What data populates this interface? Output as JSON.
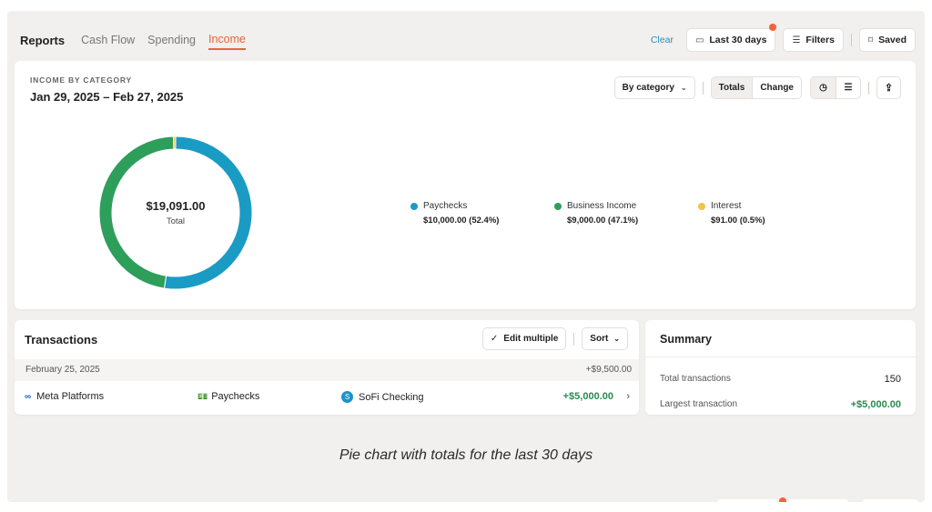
{
  "nav": {
    "title": "Reports",
    "tabs": [
      {
        "label": "Cash Flow",
        "active": false
      },
      {
        "label": "Spending",
        "active": false
      },
      {
        "label": "Income",
        "active": true
      }
    ]
  },
  "top_actions": {
    "clear_label": "Clear",
    "date_range_label": "Last 30 days",
    "filters_label": "Filters",
    "saved_label": "Saved"
  },
  "report": {
    "eyebrow": "INCOME BY CATEGORY",
    "date_range": "Jan 29, 2025 – Feb 27, 2025",
    "group_by_label": "By category",
    "mode_totals": "Totals",
    "mode_change": "Change",
    "total_value": "$19,091.00",
    "total_label": "Total"
  },
  "chart_data": {
    "type": "pie",
    "style": "donut",
    "total": 19091.0,
    "series": [
      {
        "name": "Paychecks",
        "value": 10000.0,
        "percent": 52.4,
        "color": "#1a9bc4",
        "label": "$10,000.00 (52.4%)"
      },
      {
        "name": "Business Income",
        "value": 9000.0,
        "percent": 47.1,
        "color": "#2e9e5b",
        "label": "$9,000.00 (47.1%)"
      },
      {
        "name": "Interest",
        "value": 91.0,
        "percent": 0.5,
        "color": "#f2c14e",
        "label": "$91.00 (0.5%)"
      }
    ]
  },
  "transactions": {
    "title": "Transactions",
    "edit_multiple_label": "Edit multiple",
    "sort_label": "Sort",
    "groups": [
      {
        "date": "February 25, 2025",
        "total": "+$9,500.00",
        "rows": [
          {
            "merchant": "Meta Platforms",
            "category": "Paychecks",
            "account": "SoFi Checking",
            "amount": "+$5,000.00"
          }
        ]
      }
    ]
  },
  "summary": {
    "title": "Summary",
    "rows": [
      {
        "label": "Total transactions",
        "value": "150"
      },
      {
        "label": "Largest transaction",
        "value": "+$5,000.00"
      }
    ]
  },
  "caption": "Pie chart with totals for the last 30 days"
}
